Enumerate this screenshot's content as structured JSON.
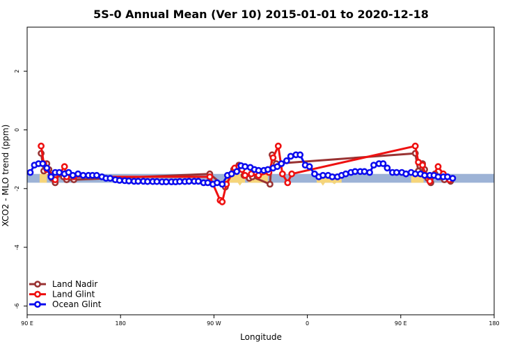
{
  "chart_data": {
    "type": "line",
    "title": "5S-0 Annual Mean (Ver 10)   2015-01-01 to 2020-12-18",
    "xlabel": "Longitude",
    "ylabel": "XCO2 - MLO trend (ppm)",
    "xlim": [
      90,
      540
    ],
    "ylim": [
      -6.3,
      3.5
    ],
    "x_ticks": [
      {
        "value": 90,
        "label": "90 E"
      },
      {
        "value": 180,
        "label": "180"
      },
      {
        "value": 270,
        "label": "90 W"
      },
      {
        "value": 360,
        "label": "0"
      },
      {
        "value": 450,
        "label": "90 E"
      },
      {
        "value": 540,
        "label": "180"
      }
    ],
    "y_ticks": [
      {
        "value": 2,
        "label": "2"
      },
      {
        "value": 0,
        "label": "0"
      },
      {
        "value": -2,
        "label": "-2"
      },
      {
        "value": -4,
        "label": "-4"
      },
      {
        "value": -6,
        "label": "-6"
      }
    ],
    "grid": false,
    "legend_position": "bottom-left",
    "band": {
      "y_low": -1.8,
      "y_high": -1.5,
      "color": "#9db3d6"
    },
    "yellow_band": {
      "color": "#f6d57a",
      "segments": [
        [
          102,
          109
        ],
        [
          280,
          300
        ],
        [
          303,
          322
        ],
        [
          369,
          393
        ],
        [
          460,
          472
        ]
      ],
      "spikes": [
        [
          104,
          -1.8
        ],
        [
          106,
          -1.8
        ],
        [
          295,
          -1.9
        ],
        [
          375,
          -1.9
        ],
        [
          386,
          -1.85
        ],
        [
          462,
          -1.75
        ],
        [
          465,
          -1.8
        ]
      ]
    },
    "series": [
      {
        "name": "Land Nadir",
        "color": "#993333",
        "points": [
          [
            103.5,
            -0.8
          ],
          [
            106,
            -1.4
          ],
          [
            109,
            -1.15
          ],
          [
            111,
            -1.35
          ],
          [
            114,
            -1.65
          ],
          [
            117,
            -1.8
          ],
          [
            121,
            -1.5
          ],
          [
            125,
            -1.6
          ],
          [
            128,
            -1.7
          ],
          [
            135,
            -1.7
          ],
          [
            266,
            -1.5
          ],
          [
            281,
            -1.95
          ],
          [
            289,
            -1.35
          ],
          [
            294,
            -1.2
          ],
          [
            299,
            -1.55
          ],
          [
            304,
            -1.65
          ],
          [
            307,
            -1.6
          ],
          [
            324,
            -1.85
          ],
          [
            326,
            -0.85
          ],
          [
            330,
            -1.15
          ],
          [
            464,
            -0.8
          ],
          [
            467,
            -1.4
          ],
          [
            471,
            -1.15
          ],
          [
            473,
            -1.35
          ],
          [
            476,
            -1.65
          ],
          [
            479,
            -1.8
          ],
          [
            483,
            -1.5
          ],
          [
            488,
            -1.6
          ],
          [
            492,
            -1.7
          ],
          [
            498,
            -1.75
          ]
        ]
      },
      {
        "name": "Land Glint",
        "color": "#ee1111",
        "points": [
          [
            103.5,
            -0.55
          ],
          [
            106,
            -1.15
          ],
          [
            109,
            -1.35
          ],
          [
            113,
            -1.55
          ],
          [
            117,
            -1.7
          ],
          [
            126,
            -1.25
          ],
          [
            128,
            -1.6
          ],
          [
            135,
            -1.6
          ],
          [
            266,
            -1.6
          ],
          [
            276,
            -2.4
          ],
          [
            278,
            -2.45
          ],
          [
            282,
            -1.85
          ],
          [
            290,
            -1.3
          ],
          [
            294,
            -1.25
          ],
          [
            297,
            -1.35
          ],
          [
            300,
            -1.55
          ],
          [
            306,
            -1.5
          ],
          [
            313,
            -1.55
          ],
          [
            323,
            -1.45
          ],
          [
            327,
            -0.95
          ],
          [
            332,
            -0.55
          ],
          [
            336,
            -1.5
          ],
          [
            341,
            -1.8
          ],
          [
            345,
            -1.5
          ],
          [
            464,
            -0.55
          ],
          [
            467,
            -1.1
          ],
          [
            471,
            -1.2
          ],
          [
            474,
            -1.55
          ],
          [
            478,
            -1.75
          ],
          [
            486,
            -1.25
          ],
          [
            491,
            -1.5
          ],
          [
            497,
            -1.7
          ]
        ]
      },
      {
        "name": "Ocean Glint",
        "color": "#0b0bee",
        "points": [
          [
            93,
            -1.45
          ],
          [
            97,
            -1.2
          ],
          [
            101,
            -1.15
          ],
          [
            105,
            -1.15
          ],
          [
            109,
            -1.3
          ],
          [
            113,
            -1.6
          ],
          [
            117,
            -1.45
          ],
          [
            121,
            -1.45
          ],
          [
            126,
            -1.5
          ],
          [
            130,
            -1.45
          ],
          [
            134,
            -1.55
          ],
          [
            139,
            -1.5
          ],
          [
            144,
            -1.55
          ],
          [
            149,
            -1.55
          ],
          [
            153,
            -1.55
          ],
          [
            157,
            -1.55
          ],
          [
            162,
            -1.6
          ],
          [
            166,
            -1.65
          ],
          [
            170,
            -1.65
          ],
          [
            175,
            -1.7
          ],
          [
            179,
            -1.72
          ],
          [
            184,
            -1.73
          ],
          [
            188,
            -1.74
          ],
          [
            193,
            -1.75
          ],
          [
            197,
            -1.75
          ],
          [
            202,
            -1.75
          ],
          [
            206,
            -1.76
          ],
          [
            211,
            -1.76
          ],
          [
            215,
            -1.76
          ],
          [
            220,
            -1.77
          ],
          [
            224,
            -1.77
          ],
          [
            229,
            -1.77
          ],
          [
            233,
            -1.77
          ],
          [
            237,
            -1.76
          ],
          [
            242,
            -1.76
          ],
          [
            246,
            -1.75
          ],
          [
            251,
            -1.75
          ],
          [
            255,
            -1.75
          ],
          [
            260,
            -1.8
          ],
          [
            264,
            -1.8
          ],
          [
            269,
            -1.85
          ],
          [
            273,
            -1.8
          ],
          [
            278,
            -1.85
          ],
          [
            283,
            -1.55
          ],
          [
            287,
            -1.5
          ],
          [
            292,
            -1.42
          ],
          [
            296,
            -1.22
          ],
          [
            300,
            -1.25
          ],
          [
            305,
            -1.28
          ],
          [
            309,
            -1.35
          ],
          [
            313,
            -1.38
          ],
          [
            318,
            -1.38
          ],
          [
            322,
            -1.35
          ],
          [
            327,
            -1.3
          ],
          [
            331,
            -1.25
          ],
          [
            335,
            -1.15
          ],
          [
            340,
            -1.05
          ],
          [
            344,
            -0.9
          ],
          [
            349,
            -0.85
          ],
          [
            353,
            -0.85
          ],
          [
            358,
            -1.2
          ],
          [
            362,
            -1.25
          ],
          [
            367,
            -1.5
          ],
          [
            371,
            -1.6
          ],
          [
            375,
            -1.55
          ],
          [
            380,
            -1.55
          ],
          [
            384,
            -1.6
          ],
          [
            389,
            -1.6
          ],
          [
            393,
            -1.55
          ],
          [
            397,
            -1.5
          ],
          [
            402,
            -1.45
          ],
          [
            406,
            -1.42
          ],
          [
            411,
            -1.42
          ],
          [
            415,
            -1.42
          ],
          [
            420,
            -1.45
          ],
          [
            424,
            -1.2
          ],
          [
            429,
            -1.15
          ],
          [
            433,
            -1.15
          ],
          [
            437,
            -1.3
          ],
          [
            442,
            -1.45
          ],
          [
            446,
            -1.45
          ],
          [
            451,
            -1.45
          ],
          [
            455,
            -1.5
          ],
          [
            460,
            -1.45
          ],
          [
            464,
            -1.5
          ],
          [
            469,
            -1.5
          ],
          [
            473,
            -1.55
          ],
          [
            478,
            -1.55
          ],
          [
            482,
            -1.55
          ],
          [
            486,
            -1.6
          ],
          [
            491,
            -1.6
          ],
          [
            495,
            -1.6
          ],
          [
            500,
            -1.65
          ]
        ]
      }
    ]
  }
}
